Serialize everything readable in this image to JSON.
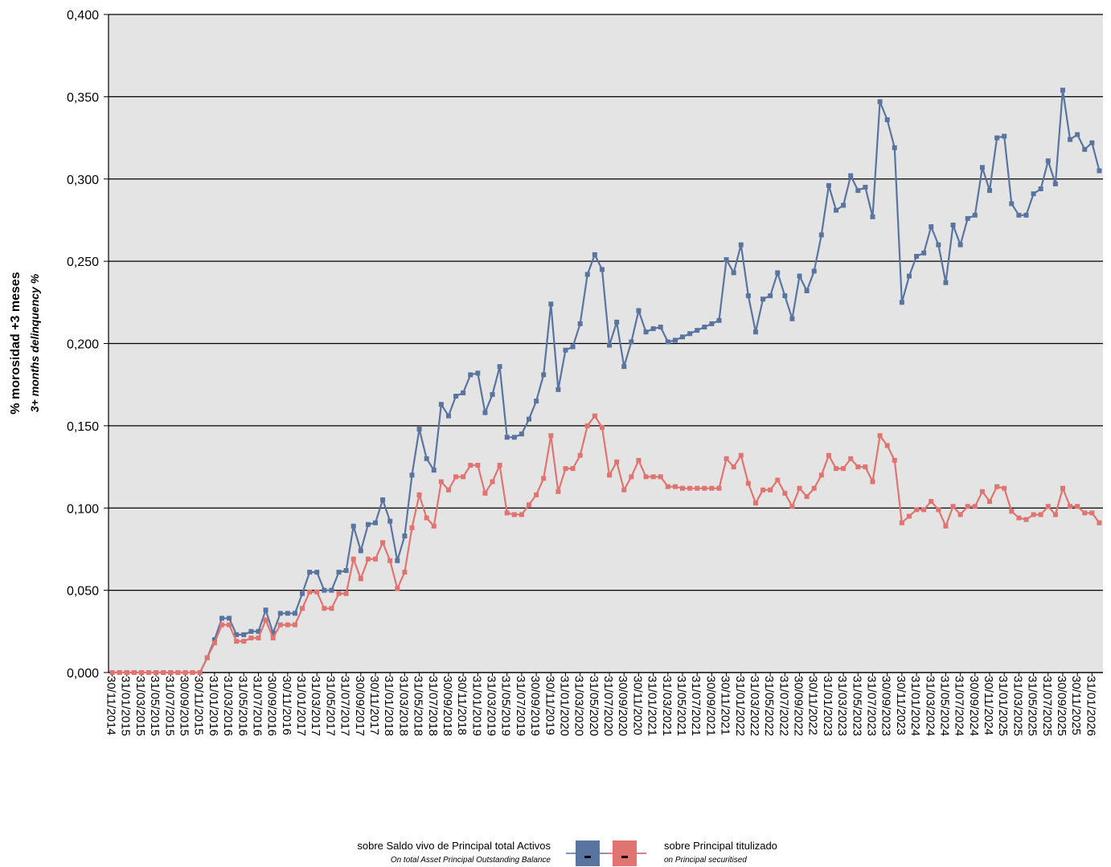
{
  "chart_data": {
    "type": "line",
    "y_label": "% morosidad +3 meses",
    "y_label_en": "3+ months delinquency %",
    "categories": [
      "30/11/2014",
      null,
      "31/01/2015",
      null,
      "31/03/2015",
      null,
      "31/05/2015",
      null,
      "31/07/2015",
      null,
      "30/09/2015",
      null,
      "30/11/2015",
      null,
      "31/01/2016",
      null,
      "31/03/2016",
      null,
      "31/05/2016",
      null,
      "31/07/2016",
      null,
      "30/09/2016",
      null,
      "30/11/2016",
      null,
      "31/01/2017",
      null,
      "31/03/2017",
      null,
      "31/05/2017",
      null,
      "31/07/2017",
      null,
      "30/09/2017",
      null,
      "30/11/2017",
      null,
      "31/01/2018",
      null,
      "31/03/2018",
      null,
      "31/05/2018",
      null,
      "31/07/2018",
      null,
      "30/09/2018",
      null,
      "30/11/2018",
      null,
      "31/01/2019",
      null,
      "31/03/2019",
      null,
      "31/05/2019",
      null,
      "31/07/2019",
      null,
      "30/09/2019",
      null,
      "30/11/2019",
      null,
      "31/01/2020",
      null,
      "31/03/2020",
      null,
      "31/05/2020",
      null,
      "31/07/2020",
      null,
      "30/09/2020",
      null,
      "30/11/2020",
      null,
      "31/01/2021",
      null,
      "31/03/2021",
      null,
      "31/05/2021",
      null,
      "31/07/2021",
      null,
      "30/09/2021",
      null,
      "30/11/2021",
      null,
      "31/01/2022",
      null,
      "31/03/2022",
      null,
      "31/05/2022",
      null,
      "31/07/2022",
      null,
      "30/09/2022",
      null,
      "30/11/2022",
      null,
      "31/01/2023",
      null,
      "31/03/2023",
      null,
      "31/05/2023",
      null,
      "31/07/2023",
      null,
      "30/09/2023",
      null,
      "30/11/2023",
      null,
      "31/01/2024",
      null,
      "31/03/2024",
      null,
      "31/05/2024",
      null,
      "31/07/2024",
      null,
      "30/09/2024",
      null,
      "30/11/2024",
      null,
      "31/01/2025",
      null,
      "31/03/2025",
      null,
      "31/05/2025",
      null,
      "31/07/2025",
      null,
      "30/09/2025",
      null,
      "30/11/2025",
      null,
      "31/01/2026",
      null
    ],
    "series": [
      {
        "name": "sobre Saldo vivo de Principal total Activos",
        "name_en": "On total Asset Principal Outstanding Balance",
        "color": "#5a74a0",
        "values": [
          0,
          0,
          0,
          0,
          0,
          0,
          0,
          0,
          0,
          0,
          0,
          0,
          0,
          0.009,
          0.02,
          0.033,
          0.033,
          0.023,
          0.023,
          0.025,
          0.025,
          0.038,
          0.024,
          0.036,
          0.036,
          0.036,
          0.048,
          0.061,
          0.061,
          0.05,
          0.05,
          0.061,
          0.062,
          0.089,
          0.074,
          0.09,
          0.091,
          0.105,
          0.092,
          0.068,
          0.083,
          0.12,
          0.148,
          0.13,
          0.123,
          0.163,
          0.156,
          0.168,
          0.17,
          0.181,
          0.182,
          0.158,
          0.169,
          0.186,
          0.143,
          0.143,
          0.145,
          0.154,
          0.165,
          0.181,
          0.224,
          0.172,
          0.196,
          0.198,
          0.212,
          0.242,
          0.254,
          0.245,
          0.199,
          0.213,
          0.186,
          0.201,
          0.22,
          0.207,
          0.209,
          0.21,
          0.201,
          0.202,
          0.204,
          0.206,
          0.208,
          0.21,
          0.212,
          0.214,
          0.251,
          0.243,
          0.26,
          0.229,
          0.207,
          0.227,
          0.229,
          0.243,
          0.229,
          0.215,
          0.241,
          0.232,
          0.244,
          0.266,
          0.296,
          0.281,
          0.284,
          0.302,
          0.293,
          0.295,
          0.277,
          0.347,
          0.336,
          0.319,
          0.225,
          0.241,
          0.253,
          0.255,
          0.271,
          0.26,
          0.237,
          0.272,
          0.26,
          0.276,
          0.278,
          0.307,
          0.293,
          0.325,
          0.326,
          0.285,
          0.278,
          0.278,
          0.291,
          0.294,
          0.311,
          0.297,
          0.354,
          0.324,
          0.327,
          0.318,
          0.322,
          0.305
        ]
      },
      {
        "name": "sobre Principal titulizado",
        "name_en": "on Principal securitised",
        "color": "#e07470",
        "values": [
          0,
          0,
          0,
          0,
          0,
          0,
          0,
          0,
          0,
          0,
          0,
          0,
          0,
          0.009,
          0.018,
          0.029,
          0.029,
          0.019,
          0.019,
          0.021,
          0.021,
          0.032,
          0.021,
          0.029,
          0.029,
          0.029,
          0.039,
          0.049,
          0.049,
          0.039,
          0.039,
          0.048,
          0.048,
          0.069,
          0.057,
          0.069,
          0.069,
          0.079,
          0.068,
          0.051,
          0.061,
          0.088,
          0.108,
          0.094,
          0.089,
          0.116,
          0.111,
          0.119,
          0.119,
          0.126,
          0.126,
          0.109,
          0.116,
          0.126,
          0.097,
          0.096,
          0.096,
          0.102,
          0.108,
          0.118,
          0.144,
          0.11,
          0.124,
          0.124,
          0.132,
          0.15,
          0.156,
          0.149,
          0.12,
          0.128,
          0.111,
          0.119,
          0.129,
          0.119,
          0.119,
          0.119,
          0.113,
          0.113,
          0.112,
          0.112,
          0.112,
          0.112,
          0.112,
          0.112,
          0.13,
          0.125,
          0.132,
          0.115,
          0.103,
          0.111,
          0.111,
          0.117,
          0.109,
          0.101,
          0.112,
          0.107,
          0.112,
          0.12,
          0.132,
          0.124,
          0.124,
          0.13,
          0.125,
          0.125,
          0.116,
          0.144,
          0.138,
          0.129,
          0.091,
          0.095,
          0.099,
          0.099,
          0.104,
          0.099,
          0.089,
          0.101,
          0.096,
          0.101,
          0.101,
          0.11,
          0.104,
          0.113,
          0.112,
          0.098,
          0.094,
          0.093,
          0.096,
          0.096,
          0.101,
          0.096,
          0.112,
          0.101,
          0.101,
          0.097,
          0.097,
          0.091
        ]
      }
    ],
    "ylim": [
      0,
      0.4
    ],
    "yticks": [
      {
        "value": 0,
        "label": "0,000"
      },
      {
        "value": 0.05,
        "label": "0,050"
      },
      {
        "value": 0.1,
        "label": "0,100"
      },
      {
        "value": 0.15,
        "label": "0,150"
      },
      {
        "value": 0.2,
        "label": "0,200"
      },
      {
        "value": 0.25,
        "label": "0,250"
      },
      {
        "value": 0.3,
        "label": "0,300"
      },
      {
        "value": 0.35,
        "label": "0,350"
      },
      {
        "value": 0.4,
        "label": "0,400"
      }
    ],
    "grid": true,
    "plot_background": "#e4e4e4"
  }
}
